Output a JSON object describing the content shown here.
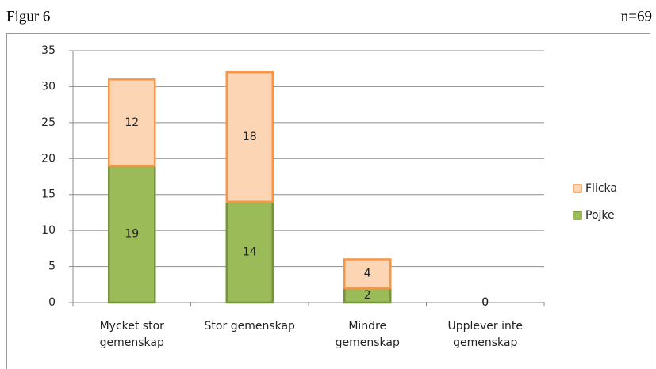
{
  "chart_data": {
    "type": "stacked_bar",
    "title": "Figur 6",
    "subtitle": "n=69",
    "categories": [
      [
        "Mycket stor",
        "gemenskap"
      ],
      [
        "Stor gemenskap"
      ],
      [
        "Mindre",
        "gemenskap"
      ],
      [
        "Upplever inte",
        "gemenskap"
      ]
    ],
    "series": [
      {
        "name": "Pojke",
        "color": "#9bbb59",
        "border": "#77933c",
        "values": [
          19,
          14,
          2,
          0
        ]
      },
      {
        "name": "Flicka",
        "color": "#fcd5b5",
        "border": "#f79646",
        "values": [
          12,
          18,
          4,
          0
        ]
      }
    ],
    "ylim": [
      0,
      35
    ],
    "yticks": [
      0,
      5,
      10,
      15,
      20,
      25,
      30,
      35
    ],
    "grid": true,
    "legend": "right"
  }
}
